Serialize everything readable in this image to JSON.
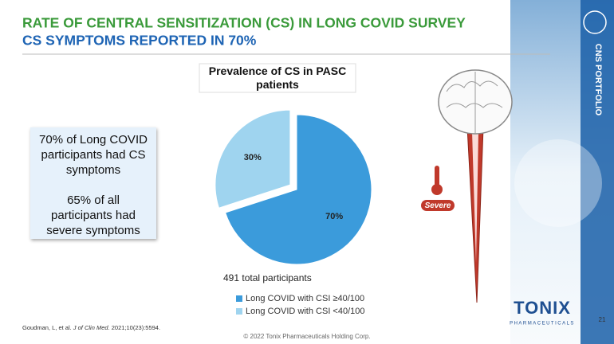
{
  "slide": {
    "title": "RATE OF CENTRAL SENSITIZATION (CS) IN LONG COVID SURVEY",
    "subtitle": "CS SYMPTOMS REPORTED IN 70%",
    "sidebar": "CNS PORTFOLIO",
    "callout": [
      "70% of Long COVID participants had CS symptoms",
      "65% of all participants had severe symptoms"
    ],
    "severity_tag": "Severe",
    "citation": {
      "authors": "Goudman, L, et al. ",
      "journal": "J of Clin Med.",
      "details": " 2021;10(23):5594."
    },
    "copyright": "© 2022 Tonix Pharmaceuticals Holding Corp.",
    "page_number": "21",
    "logo": {
      "name": "TONIX",
      "tagline": "PHARMACEUTICALS"
    }
  },
  "chart_data": {
    "type": "pie",
    "title": "Prevalence of CS in PASC patients",
    "annotation": "491 total participants",
    "categories": [
      "Long COVID with CSI ≥40/100",
      "Long COVID with CSI <40/100"
    ],
    "values": [
      70,
      30
    ],
    "value_labels": [
      "70%",
      "30%"
    ],
    "colors": [
      "#3b9bdb",
      "#9fd4ef"
    ],
    "legend": "bottom"
  }
}
